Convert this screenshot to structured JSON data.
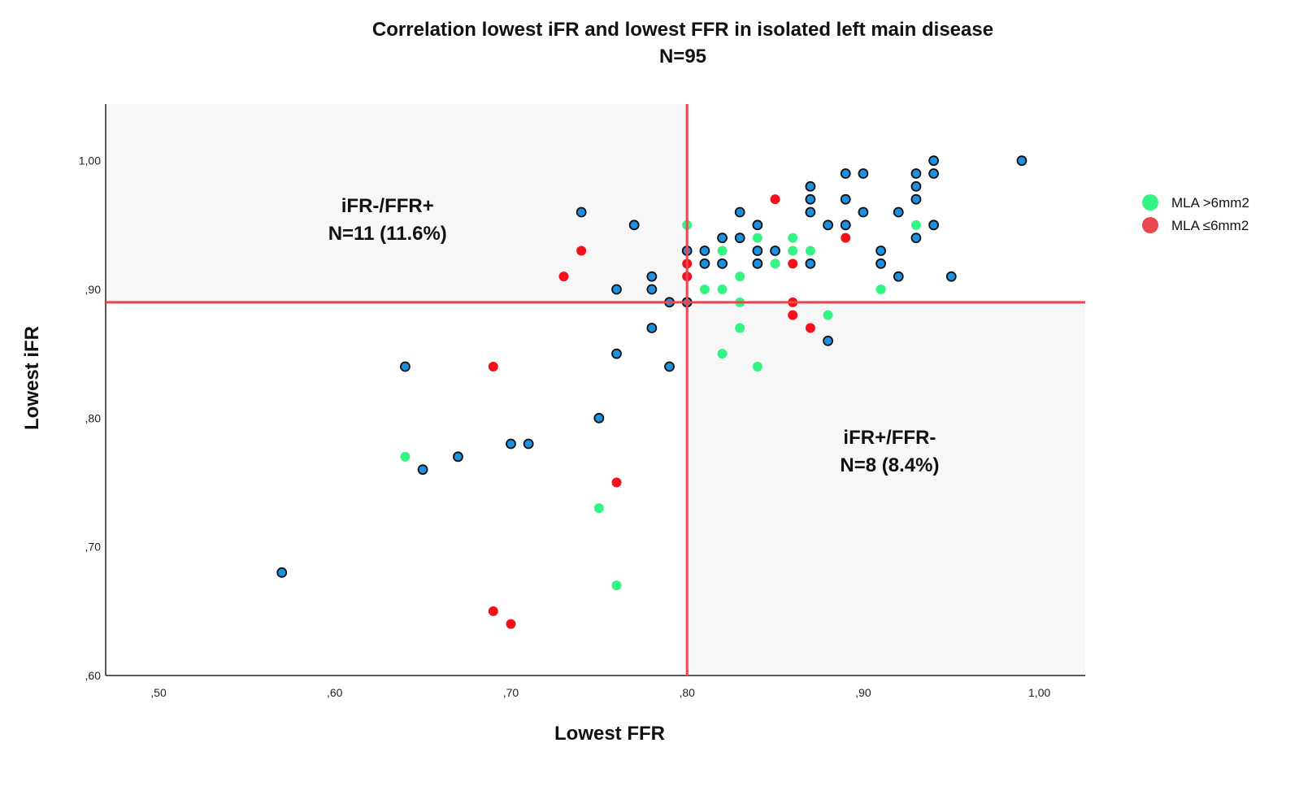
{
  "chart_data": {
    "type": "scatter",
    "title": "Correlation lowest iFR and lowest FFR in isolated left main disease",
    "subtitle": "N=95",
    "xlabel": "Lowest FFR",
    "ylabel": "Lowest iFR",
    "xlim": [
      0.47,
      1.026
    ],
    "ylim": [
      0.6,
      1.044
    ],
    "xticks": [
      0.5,
      0.6,
      0.7,
      0.8,
      0.9,
      1.0
    ],
    "xtick_labels": [
      ",50",
      ",60",
      ",70",
      ",80",
      ",90",
      "1,00"
    ],
    "yticks": [
      0.6,
      0.7,
      0.8,
      0.9,
      1.0
    ],
    "ytick_labels": [
      ",60",
      ",70",
      ",80",
      ",90",
      "1,00"
    ],
    "grid": false,
    "cutoffs": {
      "x": 0.8,
      "y": 0.89
    },
    "cutoff_color": "#e8474f",
    "shaded_quadrants_color": "#f7f7f7",
    "annotations": [
      {
        "lines": [
          "iFR-/FFR+",
          "N=11 (11.6%)"
        ],
        "x": 0.63,
        "y": 0.96
      },
      {
        "lines": [
          "iFR+/FFR-",
          "N=8 (8.4%)"
        ],
        "x": 0.915,
        "y": 0.78
      }
    ],
    "legend": {
      "position": "right",
      "entries": [
        {
          "label": "MLA >6mm2",
          "color": "#33f584"
        },
        {
          "label": "MLA ≤6mm2",
          "color": "#e8474f"
        }
      ]
    },
    "series": [
      {
        "color": "#1e90e0",
        "outline": true,
        "points": [
          [
            0.77,
            0.95
          ],
          [
            0.78,
            0.91
          ],
          [
            0.78,
            0.9
          ],
          [
            0.79,
            0.89
          ],
          [
            0.78,
            0.87
          ],
          [
            0.79,
            0.84
          ],
          [
            0.8,
            0.93
          ],
          [
            0.8,
            0.89
          ],
          [
            0.81,
            0.93
          ],
          [
            0.81,
            0.92
          ],
          [
            0.82,
            0.94
          ],
          [
            0.82,
            0.92
          ],
          [
            0.83,
            0.96
          ],
          [
            0.83,
            0.94
          ],
          [
            0.84,
            0.95
          ],
          [
            0.84,
            0.93
          ],
          [
            0.84,
            0.92
          ],
          [
            0.85,
            0.93
          ],
          [
            0.87,
            0.98
          ],
          [
            0.87,
            0.97
          ],
          [
            0.87,
            0.96
          ],
          [
            0.87,
            0.92
          ],
          [
            0.88,
            0.95
          ],
          [
            0.88,
            0.86
          ],
          [
            0.89,
            0.99
          ],
          [
            0.89,
            0.97
          ],
          [
            0.89,
            0.95
          ],
          [
            0.9,
            0.99
          ],
          [
            0.9,
            0.96
          ],
          [
            0.91,
            0.93
          ],
          [
            0.91,
            0.92
          ],
          [
            0.92,
            0.96
          ],
          [
            0.92,
            0.91
          ],
          [
            0.93,
            0.99
          ],
          [
            0.93,
            0.98
          ],
          [
            0.93,
            0.97
          ],
          [
            0.93,
            0.94
          ],
          [
            0.94,
            1.0
          ],
          [
            0.94,
            0.99
          ],
          [
            0.94,
            0.95
          ],
          [
            0.95,
            0.91
          ],
          [
            0.99,
            1.0
          ],
          [
            0.74,
            0.96
          ],
          [
            0.76,
            0.9
          ],
          [
            0.76,
            0.85
          ],
          [
            0.75,
            0.8
          ],
          [
            0.64,
            0.84
          ],
          [
            0.65,
            0.76
          ],
          [
            0.67,
            0.77
          ],
          [
            0.7,
            0.78
          ],
          [
            0.71,
            0.78
          ],
          [
            0.57,
            0.68
          ]
        ]
      },
      {
        "name": "MLA >6mm2",
        "color": "#33f584",
        "points": [
          [
            0.8,
            0.95
          ],
          [
            0.81,
            0.9
          ],
          [
            0.82,
            0.93
          ],
          [
            0.82,
            0.9
          ],
          [
            0.82,
            0.85
          ],
          [
            0.83,
            0.91
          ],
          [
            0.83,
            0.89
          ],
          [
            0.83,
            0.87
          ],
          [
            0.84,
            0.94
          ],
          [
            0.84,
            0.84
          ],
          [
            0.85,
            0.92
          ],
          [
            0.86,
            0.94
          ],
          [
            0.86,
            0.93
          ],
          [
            0.87,
            0.93
          ],
          [
            0.88,
            0.88
          ],
          [
            0.91,
            0.9
          ],
          [
            0.93,
            0.95
          ],
          [
            0.64,
            0.77
          ],
          [
            0.75,
            0.73
          ],
          [
            0.76,
            0.67
          ]
        ]
      },
      {
        "name": "MLA ≤6mm2",
        "color": "#f5101c",
        "points": [
          [
            0.8,
            0.92
          ],
          [
            0.8,
            0.91
          ],
          [
            0.85,
            0.97
          ],
          [
            0.86,
            0.92
          ],
          [
            0.86,
            0.89
          ],
          [
            0.86,
            0.88
          ],
          [
            0.87,
            0.87
          ],
          [
            0.89,
            0.94
          ],
          [
            0.74,
            0.93
          ],
          [
            0.73,
            0.91
          ],
          [
            0.69,
            0.84
          ],
          [
            0.76,
            0.75
          ],
          [
            0.69,
            0.65
          ],
          [
            0.7,
            0.64
          ]
        ]
      }
    ]
  }
}
